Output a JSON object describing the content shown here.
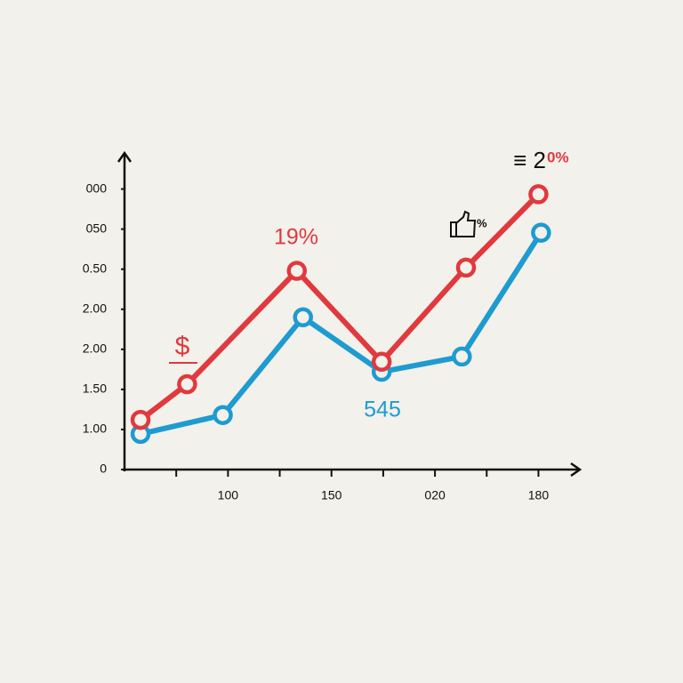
{
  "chart_data": {
    "type": "line",
    "xlim": [
      0,
      8.8
    ],
    "xticks": [
      {
        "value": 2,
        "label": "100"
      },
      {
        "value": 4,
        "label": "150"
      },
      {
        "value": 6,
        "label": "020"
      },
      {
        "value": 8,
        "label": "180"
      }
    ],
    "xticks_minor": [
      1,
      3,
      5,
      7
    ],
    "ylim": [
      0,
      7.9
    ],
    "yticks": [
      0,
      {
        "value": 1,
        "label": "1.00"
      },
      {
        "value": 2,
        "label": "1.50"
      },
      {
        "value": 3,
        "label": "2.00"
      },
      {
        "value": 4,
        "label": "2.00"
      },
      {
        "value": 5,
        "label": "0.50"
      },
      {
        "value": 6,
        "label": "050"
      },
      {
        "value": 7,
        "label": "000"
      }
    ],
    "series": [
      {
        "color": "#e0393e",
        "x": [
          0.31,
          1.21,
          3.33,
          4.97,
          6.6,
          8.0
        ],
        "values": [
          1.24,
          2.13,
          4.96,
          2.69,
          5.04,
          6.87
        ]
      },
      {
        "color": "#1e9bd0",
        "x": [
          0.31,
          1.9,
          3.45,
          4.97,
          6.52,
          8.05
        ],
        "values": [
          0.89,
          1.36,
          3.8,
          2.44,
          2.82,
          5.91
        ]
      }
    ],
    "annotations": [
      "$",
      "19%",
      "545",
      "≡ 2",
      "0%",
      "%"
    ]
  }
}
